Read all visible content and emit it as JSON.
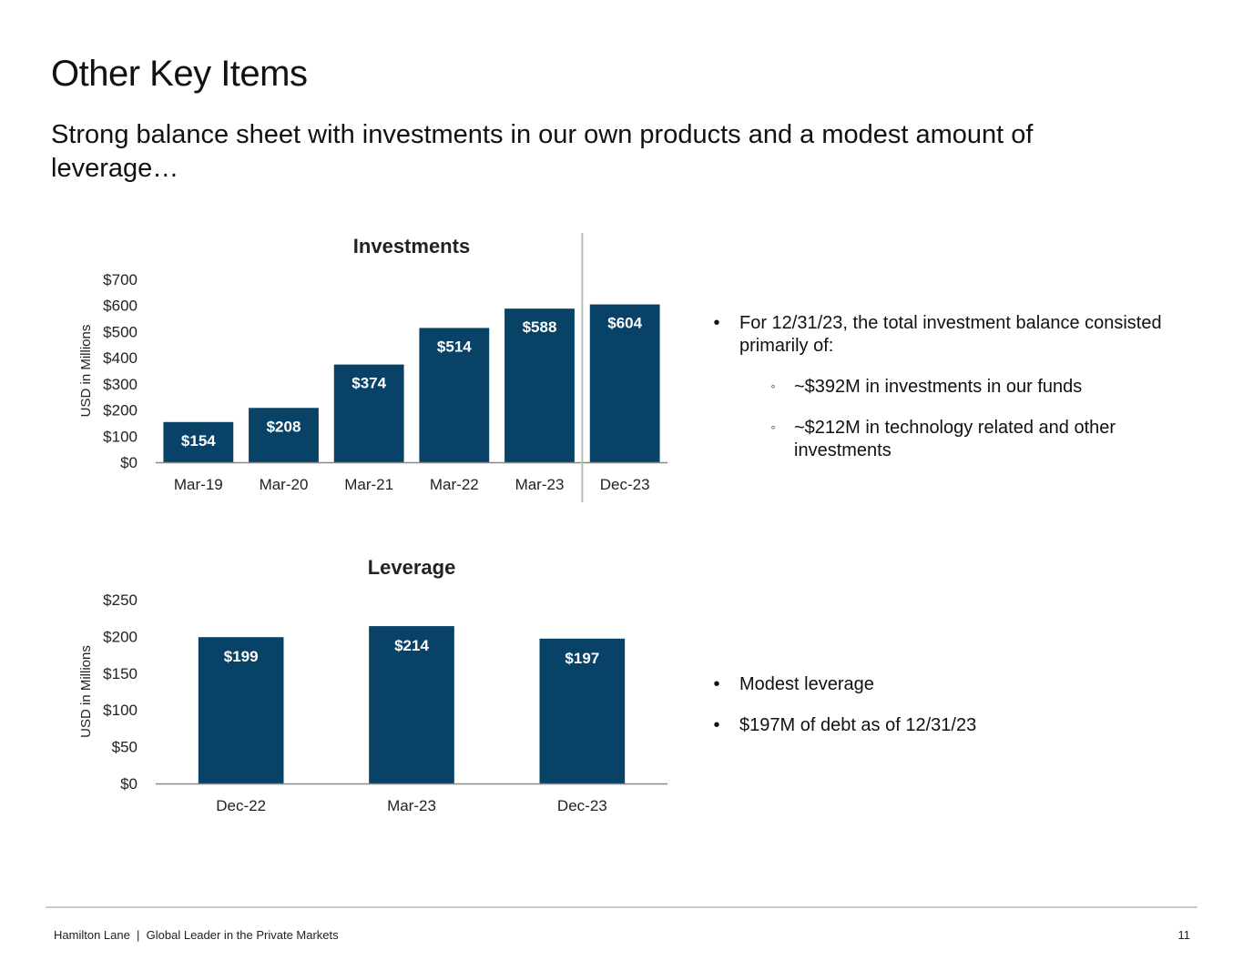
{
  "title": "Other Key Items",
  "subtitle": "Strong balance sheet with investments in our own products and a modest amount of leverage…",
  "colors": {
    "bar": "#084266",
    "bar_label": "#ffffff",
    "axis": "#888888",
    "divider": "#bbbbbb"
  },
  "chart_data": [
    {
      "type": "bar",
      "title": "Investments",
      "ylabel": "USD in Millions",
      "categories": [
        "Mar-19",
        "Mar-20",
        "Mar-21",
        "Mar-22",
        "Mar-23",
        "Dec-23"
      ],
      "values": [
        154,
        208,
        374,
        514,
        588,
        604
      ],
      "data_labels": [
        "$154",
        "$208",
        "$374",
        "$514",
        "$588",
        "$604"
      ],
      "ylim": [
        0,
        700
      ],
      "yticks": [
        0,
        100,
        200,
        300,
        400,
        500,
        600,
        700
      ],
      "ytick_labels": [
        "$0",
        "$100",
        "$200",
        "$300",
        "$400",
        "$500",
        "$600",
        "$700"
      ],
      "grid": false,
      "divider_before": "Dec-23"
    },
    {
      "type": "bar",
      "title": "Leverage",
      "ylabel": "USD in Millions",
      "categories": [
        "Dec-22",
        "Mar-23",
        "Dec-23"
      ],
      "values": [
        199,
        214,
        197
      ],
      "data_labels": [
        "$199",
        "$214",
        "$197"
      ],
      "ylim": [
        0,
        250
      ],
      "yticks": [
        0,
        50,
        100,
        150,
        200,
        250
      ],
      "ytick_labels": [
        "$0",
        "$50",
        "$100",
        "$150",
        "$200",
        "$250"
      ],
      "grid": false
    }
  ],
  "investments_notes": {
    "bullet": "•",
    "sub_bullet": "◦",
    "main": "For 12/31/23, the total investment balance consisted primarily of:",
    "sub": [
      "~$392M in investments in our funds",
      "~$212M in technology related and other investments"
    ]
  },
  "leverage_notes": {
    "bullet": "•",
    "items": [
      "Modest leverage",
      "$197M of debt as of 12/31/23"
    ]
  },
  "footer": {
    "text": "Hamilton Lane  |  Global Leader in the Private Markets",
    "page": "11"
  }
}
